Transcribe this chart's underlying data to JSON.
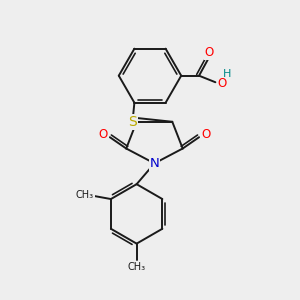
{
  "background_color": "#eeeeee",
  "bond_color": "#1a1a1a",
  "bond_width": 1.4,
  "atom_colors": {
    "O": "#ff0000",
    "N": "#0000cc",
    "S": "#bbaa00",
    "H": "#008888"
  },
  "font_size": 8.5,
  "figsize": [
    3.0,
    3.0
  ],
  "dpi": 100
}
